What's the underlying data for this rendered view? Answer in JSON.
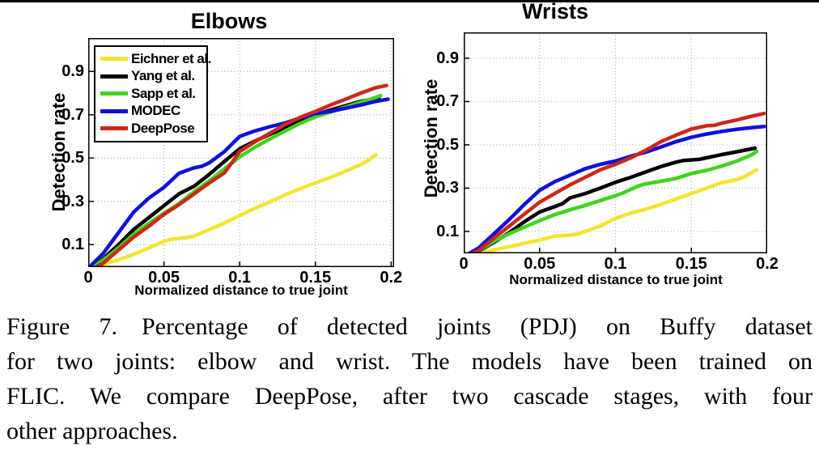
{
  "figure": {
    "caption_label": "Figure 7.",
    "caption_lines": [
      "Figure 7. Percentage of detected joints (PDJ) on Buffy dataset",
      "for two joints: elbow and wrist. The models have been trained on",
      "FLIC. We compare DeepPose, after two cascade stages, with four",
      "other approaches."
    ],
    "caption_text": "Figure 7. Percentage of detected joints (PDJ) on Buffy dataset for two joints: elbow and wrist. The models have been trained on FLIC. We compare DeepPose, after two cascade stages, with four other approaches."
  },
  "chart_data": [
    {
      "type": "line",
      "title": "Elbows",
      "xlabel": "Normalized distance to true joint",
      "ylabel": "Detection rate",
      "xlim": [
        0,
        0.2
      ],
      "ylim": [
        0,
        1.0
      ],
      "xticks": [
        0,
        0.05,
        0.1,
        0.15,
        0.2
      ],
      "xtick_labels": [
        "0",
        "0.05",
        "0.1",
        "0.15",
        "0.2"
      ],
      "yticks": [
        0.1,
        0.3,
        0.5,
        0.7,
        0.9
      ],
      "ytick_labels": [
        "0.1",
        "0.3",
        "0.5",
        "0.7",
        "0.9"
      ],
      "grid": true,
      "grid_color": "#b3b3b3",
      "axis_color": "#000000",
      "legend": {
        "position": "top-left",
        "entries": [
          "Eichner et al.",
          "Yang et al.",
          "Sapp et al.",
          "MODEC",
          "DeepPose"
        ]
      },
      "series": [
        {
          "name": "Eichner et al.",
          "color": "#f2e532",
          "x": [
            0.004,
            0.01,
            0.02,
            0.03,
            0.04,
            0.05,
            0.055,
            0.065,
            0.07,
            0.08,
            0.09,
            0.1,
            0.11,
            0.12,
            0.13,
            0.14,
            0.15,
            0.16,
            0.17,
            0.18,
            0.185,
            0.19
          ],
          "y": [
            0,
            0.01,
            0.03,
            0.055,
            0.085,
            0.115,
            0.125,
            0.133,
            0.14,
            0.17,
            0.2,
            0.235,
            0.268,
            0.298,
            0.33,
            0.358,
            0.385,
            0.41,
            0.44,
            0.47,
            0.49,
            0.515
          ]
        },
        {
          "name": "Yang et al.",
          "color": "#000000",
          "x": [
            0.004,
            0.01,
            0.02,
            0.03,
            0.04,
            0.05,
            0.06,
            0.07,
            0.08,
            0.09,
            0.1,
            0.11,
            0.12,
            0.13,
            0.14,
            0.15,
            0.16,
            0.17,
            0.18,
            0.192
          ],
          "y": [
            0,
            0.035,
            0.1,
            0.17,
            0.225,
            0.28,
            0.335,
            0.37,
            0.425,
            0.485,
            0.543,
            0.578,
            0.61,
            0.64,
            0.672,
            0.7,
            0.722,
            0.742,
            0.762,
            0.778
          ]
        },
        {
          "name": "Sapp et al.",
          "color": "#3fd41e",
          "x": [
            0.004,
            0.01,
            0.02,
            0.03,
            0.04,
            0.05,
            0.06,
            0.07,
            0.08,
            0.09,
            0.1,
            0.11,
            0.12,
            0.13,
            0.14,
            0.15,
            0.16,
            0.17,
            0.18,
            0.19,
            0.193
          ],
          "y": [
            0,
            0.03,
            0.085,
            0.148,
            0.198,
            0.245,
            0.29,
            0.345,
            0.395,
            0.45,
            0.505,
            0.55,
            0.588,
            0.625,
            0.66,
            0.69,
            0.712,
            0.736,
            0.758,
            0.78,
            0.788
          ]
        },
        {
          "name": "MODEC",
          "color": "#0f0fdc",
          "x": [
            0.002,
            0.01,
            0.02,
            0.03,
            0.04,
            0.05,
            0.06,
            0.07,
            0.075,
            0.08,
            0.09,
            0.1,
            0.11,
            0.12,
            0.13,
            0.14,
            0.15,
            0.16,
            0.17,
            0.18,
            0.19,
            0.198
          ],
          "y": [
            0.005,
            0.06,
            0.155,
            0.25,
            0.315,
            0.365,
            0.43,
            0.455,
            0.462,
            0.478,
            0.53,
            0.6,
            0.625,
            0.645,
            0.662,
            0.685,
            0.705,
            0.716,
            0.73,
            0.745,
            0.762,
            0.772
          ]
        },
        {
          "name": "DeepPose",
          "color": "#cb2819",
          "x": [
            0.006,
            0.01,
            0.02,
            0.03,
            0.04,
            0.05,
            0.06,
            0.07,
            0.08,
            0.09,
            0.095,
            0.1,
            0.11,
            0.12,
            0.13,
            0.14,
            0.15,
            0.16,
            0.17,
            0.18,
            0.19,
            0.197
          ],
          "y": [
            0,
            0.015,
            0.075,
            0.135,
            0.185,
            0.24,
            0.285,
            0.335,
            0.385,
            0.432,
            0.48,
            0.53,
            0.575,
            0.615,
            0.655,
            0.688,
            0.715,
            0.745,
            0.772,
            0.8,
            0.825,
            0.835
          ]
        }
      ]
    },
    {
      "type": "line",
      "title": "Wrists",
      "xlabel": "Normalized distance to true joint",
      "ylabel": "Detection rate",
      "xlim": [
        0,
        0.2
      ],
      "ylim": [
        0,
        1.0
      ],
      "xticks": [
        0,
        0.05,
        0.1,
        0.15,
        0.2
      ],
      "xtick_labels": [
        "0",
        "0.05",
        "0.1",
        "0.15",
        "0.2"
      ],
      "yticks": [
        0.1,
        0.3,
        0.5,
        0.7,
        0.9
      ],
      "ytick_labels": [
        "0.1",
        "0.3",
        "0.5",
        "0.7",
        "0.9"
      ],
      "grid": true,
      "grid_color": "#b3b3b3",
      "axis_color": "#000000",
      "legend": null,
      "series": [
        {
          "name": "Eichner et al.",
          "color": "#f2e532",
          "x": [
            0.01,
            0.02,
            0.03,
            0.04,
            0.05,
            0.06,
            0.07,
            0.075,
            0.08,
            0.09,
            0.1,
            0.11,
            0.12,
            0.13,
            0.14,
            0.15,
            0.16,
            0.17,
            0.18,
            0.185,
            0.193
          ],
          "y": [
            0,
            0.015,
            0.03,
            0.045,
            0.06,
            0.078,
            0.083,
            0.088,
            0.1,
            0.125,
            0.16,
            0.185,
            0.203,
            0.225,
            0.25,
            0.275,
            0.3,
            0.325,
            0.34,
            0.352,
            0.385
          ]
        },
        {
          "name": "Yang et al.",
          "color": "#000000",
          "x": [
            0.005,
            0.01,
            0.02,
            0.03,
            0.04,
            0.05,
            0.06,
            0.065,
            0.07,
            0.08,
            0.09,
            0.1,
            0.11,
            0.12,
            0.13,
            0.14,
            0.145,
            0.155,
            0.16,
            0.17,
            0.18,
            0.192
          ],
          "y": [
            0,
            0.01,
            0.05,
            0.095,
            0.145,
            0.19,
            0.215,
            0.228,
            0.255,
            0.275,
            0.3,
            0.327,
            0.35,
            0.375,
            0.4,
            0.42,
            0.428,
            0.433,
            0.44,
            0.455,
            0.468,
            0.485
          ]
        },
        {
          "name": "Sapp et al.",
          "color": "#3fd41e",
          "x": [
            0.005,
            0.01,
            0.02,
            0.03,
            0.04,
            0.05,
            0.06,
            0.07,
            0.08,
            0.09,
            0.1,
            0.105,
            0.115,
            0.12,
            0.13,
            0.14,
            0.15,
            0.16,
            0.17,
            0.18,
            0.19,
            0.193
          ],
          "y": [
            0,
            0.012,
            0.055,
            0.09,
            0.12,
            0.15,
            0.178,
            0.2,
            0.22,
            0.243,
            0.265,
            0.278,
            0.31,
            0.32,
            0.332,
            0.345,
            0.368,
            0.382,
            0.402,
            0.425,
            0.455,
            0.47
          ]
        },
        {
          "name": "MODEC",
          "color": "#0f0fdc",
          "x": [
            0.004,
            0.01,
            0.02,
            0.03,
            0.04,
            0.05,
            0.06,
            0.07,
            0.08,
            0.09,
            0.1,
            0.11,
            0.12,
            0.13,
            0.14,
            0.15,
            0.16,
            0.17,
            0.18,
            0.19,
            0.198
          ],
          "y": [
            0,
            0.025,
            0.09,
            0.155,
            0.225,
            0.29,
            0.33,
            0.36,
            0.39,
            0.41,
            0.425,
            0.447,
            0.466,
            0.49,
            0.515,
            0.535,
            0.55,
            0.562,
            0.572,
            0.58,
            0.585
          ]
        },
        {
          "name": "DeepPose",
          "color": "#cb2819",
          "x": [
            0.006,
            0.01,
            0.02,
            0.03,
            0.04,
            0.05,
            0.06,
            0.07,
            0.08,
            0.09,
            0.1,
            0.11,
            0.12,
            0.125,
            0.13,
            0.14,
            0.15,
            0.16,
            0.165,
            0.17,
            0.18,
            0.19,
            0.198
          ],
          "y": [
            0,
            0.012,
            0.07,
            0.125,
            0.18,
            0.235,
            0.275,
            0.315,
            0.35,
            0.385,
            0.41,
            0.44,
            0.475,
            0.495,
            0.515,
            0.545,
            0.573,
            0.588,
            0.59,
            0.6,
            0.615,
            0.633,
            0.645
          ]
        }
      ]
    }
  ]
}
